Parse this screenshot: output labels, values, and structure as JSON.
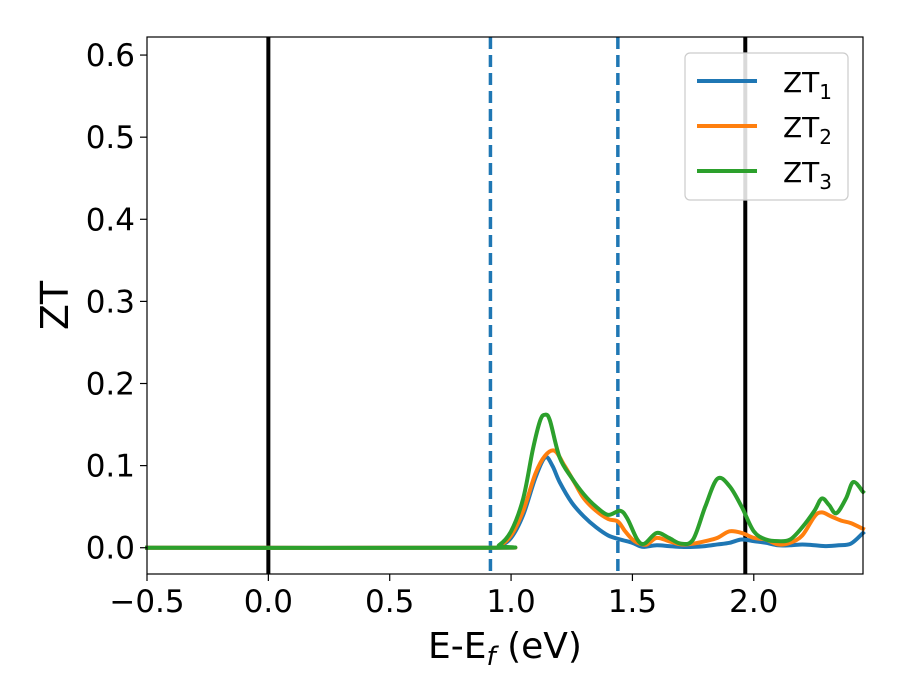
{
  "chart_data": {
    "type": "line",
    "title": "",
    "xlabel": "E-E",
    "xlabel_sub": "f",
    "xlabel_suffix": " (eV)",
    "ylabel": "ZT",
    "xlim": [
      -0.5,
      2.45
    ],
    "ylim": [
      -0.032,
      0.622
    ],
    "xticks": [
      -0.5,
      0.0,
      0.5,
      1.0,
      1.5,
      2.0
    ],
    "xtick_labels": [
      "−0.5",
      "0.0",
      "0.5",
      "1.0",
      "1.5",
      "2.0"
    ],
    "yticks": [
      0.0,
      0.1,
      0.2,
      0.3,
      0.4,
      0.5,
      0.6
    ],
    "ytick_labels": [
      "0.0",
      "0.1",
      "0.2",
      "0.3",
      "0.4",
      "0.5",
      "0.6"
    ],
    "grid": false,
    "legend_position": "top-right",
    "vlines": [
      {
        "x": 0.0,
        "style": "solid",
        "color": "#000000"
      },
      {
        "x": 1.965,
        "style": "solid",
        "color": "#000000"
      },
      {
        "x": 0.915,
        "style": "dashed",
        "color": "#1f77b4"
      },
      {
        "x": 1.44,
        "style": "dashed",
        "color": "#1f77b4"
      }
    ],
    "series": [
      {
        "name": "ZT",
        "name_sub": "1",
        "color": "#1f77b4",
        "points": [
          [
            -0.5,
            0
          ],
          [
            0.9,
            0
          ],
          [
            0.95,
            0.002
          ],
          [
            1.0,
            0.012
          ],
          [
            1.05,
            0.04
          ],
          [
            1.1,
            0.085
          ],
          [
            1.14,
            0.11
          ],
          [
            1.17,
            0.1
          ],
          [
            1.2,
            0.08
          ],
          [
            1.25,
            0.055
          ],
          [
            1.3,
            0.038
          ],
          [
            1.35,
            0.025
          ],
          [
            1.4,
            0.015
          ],
          [
            1.45,
            0.01
          ],
          [
            1.5,
            0.006
          ],
          [
            1.53,
            0.002
          ],
          [
            1.55,
            0.001
          ],
          [
            1.6,
            0.003
          ],
          [
            1.65,
            0.002
          ],
          [
            1.7,
            0.001
          ],
          [
            1.75,
            0.001
          ],
          [
            1.8,
            0.002
          ],
          [
            1.85,
            0.004
          ],
          [
            1.9,
            0.006
          ],
          [
            1.95,
            0.01
          ],
          [
            2.0,
            0.008
          ],
          [
            2.05,
            0.006
          ],
          [
            2.1,
            0.003
          ],
          [
            2.15,
            0.003
          ],
          [
            2.2,
            0.004
          ],
          [
            2.25,
            0.003
          ],
          [
            2.3,
            0.002
          ],
          [
            2.35,
            0.003
          ],
          [
            2.4,
            0.005
          ],
          [
            2.45,
            0.018
          ]
        ]
      },
      {
        "name": "ZT",
        "name_sub": "2",
        "color": "#ff7f0e",
        "points": [
          [
            -0.5,
            0
          ],
          [
            0.9,
            0
          ],
          [
            0.95,
            0.002
          ],
          [
            1.0,
            0.015
          ],
          [
            1.05,
            0.045
          ],
          [
            1.1,
            0.09
          ],
          [
            1.14,
            0.112
          ],
          [
            1.18,
            0.118
          ],
          [
            1.22,
            0.1
          ],
          [
            1.26,
            0.08
          ],
          [
            1.3,
            0.06
          ],
          [
            1.35,
            0.045
          ],
          [
            1.4,
            0.035
          ],
          [
            1.44,
            0.032
          ],
          [
            1.47,
            0.02
          ],
          [
            1.5,
            0.01
          ],
          [
            1.53,
            0.005
          ],
          [
            1.56,
            0.004
          ],
          [
            1.6,
            0.012
          ],
          [
            1.65,
            0.008
          ],
          [
            1.7,
            0.004
          ],
          [
            1.75,
            0.005
          ],
          [
            1.8,
            0.008
          ],
          [
            1.85,
            0.012
          ],
          [
            1.9,
            0.02
          ],
          [
            1.95,
            0.018
          ],
          [
            2.0,
            0.012
          ],
          [
            2.05,
            0.01
          ],
          [
            2.1,
            0.004
          ],
          [
            2.15,
            0.006
          ],
          [
            2.2,
            0.015
          ],
          [
            2.25,
            0.038
          ],
          [
            2.28,
            0.043
          ],
          [
            2.32,
            0.038
          ],
          [
            2.36,
            0.033
          ],
          [
            2.4,
            0.03
          ],
          [
            2.45,
            0.023
          ]
        ]
      },
      {
        "name": "ZT",
        "name_sub": "3",
        "color": "#2ca02c",
        "points": [
          [
            -0.5,
            0
          ],
          [
            0.9,
            0
          ],
          [
            0.95,
            0.003
          ],
          [
            1.0,
            0.02
          ],
          [
            1.05,
            0.06
          ],
          [
            1.09,
            0.12
          ],
          [
            1.12,
            0.155
          ],
          [
            1.14,
            0.162
          ],
          [
            1.16,
            0.155
          ],
          [
            1.2,
            0.11
          ],
          [
            1.25,
            0.085
          ],
          [
            1.3,
            0.065
          ],
          [
            1.35,
            0.05
          ],
          [
            1.4,
            0.04
          ],
          [
            1.45,
            0.045
          ],
          [
            1.48,
            0.035
          ],
          [
            1.52,
            0.01
          ],
          [
            1.55,
            0.005
          ],
          [
            1.6,
            0.018
          ],
          [
            1.65,
            0.012
          ],
          [
            1.7,
            0.005
          ],
          [
            1.75,
            0.01
          ],
          [
            1.8,
            0.05
          ],
          [
            1.85,
            0.084
          ],
          [
            1.9,
            0.075
          ],
          [
            1.95,
            0.05
          ],
          [
            2.0,
            0.02
          ],
          [
            2.05,
            0.01
          ],
          [
            2.1,
            0.008
          ],
          [
            2.15,
            0.01
          ],
          [
            2.2,
            0.025
          ],
          [
            2.25,
            0.045
          ],
          [
            2.28,
            0.06
          ],
          [
            2.31,
            0.052
          ],
          [
            2.34,
            0.042
          ],
          [
            2.38,
            0.06
          ],
          [
            2.41,
            0.08
          ],
          [
            2.45,
            0.068
          ]
        ]
      }
    ]
  }
}
